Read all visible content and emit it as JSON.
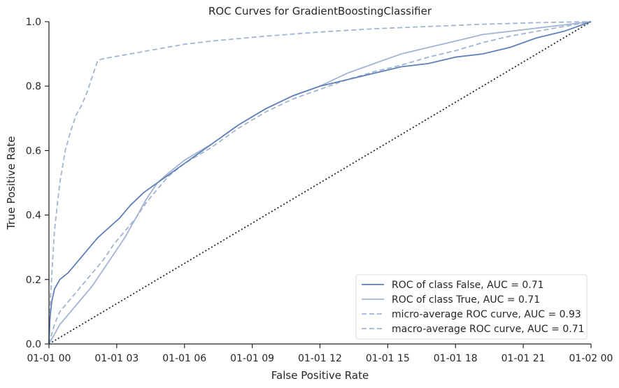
{
  "chart_data": {
    "type": "line",
    "title": "ROC Curves for GradientBoostingClassifier",
    "xlabel": "False Positive Rate",
    "ylabel": "True Positive Rate",
    "xlim": [
      0,
      1
    ],
    "ylim": [
      0,
      1
    ],
    "x_tick_values": [
      0,
      0.125,
      0.25,
      0.375,
      0.5,
      0.625,
      0.75,
      0.875,
      1.0
    ],
    "x_tick_labels": [
      "01-01 00",
      "01-01 03",
      "01-01 06",
      "01-01 09",
      "01-01 12",
      "01-01 15",
      "01-01 18",
      "01-01 21",
      "01-02 00"
    ],
    "y_tick_values": [
      0.0,
      0.2,
      0.4,
      0.6,
      0.8,
      1.0
    ],
    "y_tick_labels": [
      "0.0",
      "0.2",
      "0.4",
      "0.6",
      "0.8",
      "1.0"
    ],
    "grid": false,
    "legend_position": "lower-right",
    "series": [
      {
        "name": "ROC of class False, AUC = 0.71",
        "color": "#5f7fb7",
        "dash": "solid",
        "x": [
          0,
          0.002,
          0.005,
          0.01,
          0.02,
          0.035,
          0.05,
          0.07,
          0.09,
          0.11,
          0.13,
          0.15,
          0.175,
          0.2,
          0.25,
          0.3,
          0.35,
          0.4,
          0.45,
          0.5,
          0.55,
          0.6,
          0.65,
          0.7,
          0.75,
          0.8,
          0.85,
          0.9,
          0.95,
          1.0
        ],
        "y": [
          0,
          0.08,
          0.13,
          0.17,
          0.2,
          0.22,
          0.25,
          0.29,
          0.33,
          0.36,
          0.39,
          0.43,
          0.47,
          0.5,
          0.56,
          0.62,
          0.68,
          0.73,
          0.77,
          0.8,
          0.82,
          0.84,
          0.86,
          0.87,
          0.89,
          0.9,
          0.92,
          0.95,
          0.97,
          1.0
        ]
      },
      {
        "name": "ROC of class True, AUC = 0.71",
        "color": "#a2b4d2",
        "dash": "solid",
        "x": [
          0,
          0.01,
          0.02,
          0.04,
          0.06,
          0.08,
          0.1,
          0.12,
          0.14,
          0.16,
          0.18,
          0.2,
          0.22,
          0.25,
          0.3,
          0.35,
          0.4,
          0.45,
          0.5,
          0.55,
          0.6,
          0.65,
          0.7,
          0.75,
          0.8,
          0.85,
          0.9,
          0.95,
          1.0
        ],
        "y": [
          0,
          0.03,
          0.06,
          0.1,
          0.14,
          0.18,
          0.23,
          0.28,
          0.33,
          0.39,
          0.45,
          0.5,
          0.53,
          0.57,
          0.62,
          0.68,
          0.73,
          0.77,
          0.8,
          0.84,
          0.87,
          0.9,
          0.92,
          0.94,
          0.96,
          0.97,
          0.98,
          0.99,
          1.0
        ]
      },
      {
        "name": "micro-average ROC curve, AUC = 0.93",
        "color": "#a2b4d2",
        "dash": "dashed",
        "x": [
          0,
          0.003,
          0.01,
          0.02,
          0.03,
          0.04,
          0.05,
          0.06,
          0.07,
          0.08,
          0.09,
          0.1,
          0.15,
          0.2,
          0.25,
          0.3,
          0.4,
          0.5,
          0.6,
          0.7,
          0.8,
          0.9,
          1.0
        ],
        "y": [
          0,
          0.15,
          0.35,
          0.5,
          0.6,
          0.66,
          0.71,
          0.74,
          0.78,
          0.83,
          0.88,
          0.885,
          0.9,
          0.915,
          0.93,
          0.94,
          0.955,
          0.968,
          0.978,
          0.985,
          0.992,
          0.997,
          1.0
        ]
      },
      {
        "name": "macro-average ROC curve, AUC = 0.71",
        "color": "#a2b4d2",
        "dash": "dashed",
        "x": [
          0,
          0.01,
          0.02,
          0.04,
          0.06,
          0.08,
          0.1,
          0.12,
          0.14,
          0.16,
          0.18,
          0.2,
          0.22,
          0.25,
          0.3,
          0.35,
          0.4,
          0.45,
          0.5,
          0.55,
          0.6,
          0.65,
          0.7,
          0.75,
          0.8,
          0.85,
          0.9,
          0.95,
          1.0
        ],
        "y": [
          0,
          0.06,
          0.1,
          0.14,
          0.18,
          0.22,
          0.26,
          0.31,
          0.35,
          0.39,
          0.44,
          0.48,
          0.52,
          0.56,
          0.61,
          0.67,
          0.72,
          0.76,
          0.79,
          0.82,
          0.845,
          0.865,
          0.89,
          0.91,
          0.935,
          0.955,
          0.97,
          0.985,
          1.0
        ]
      }
    ],
    "reference_line": {
      "x": [
        0,
        1
      ],
      "y": [
        0,
        1
      ],
      "color": "#262626",
      "dash": "dotted"
    }
  }
}
